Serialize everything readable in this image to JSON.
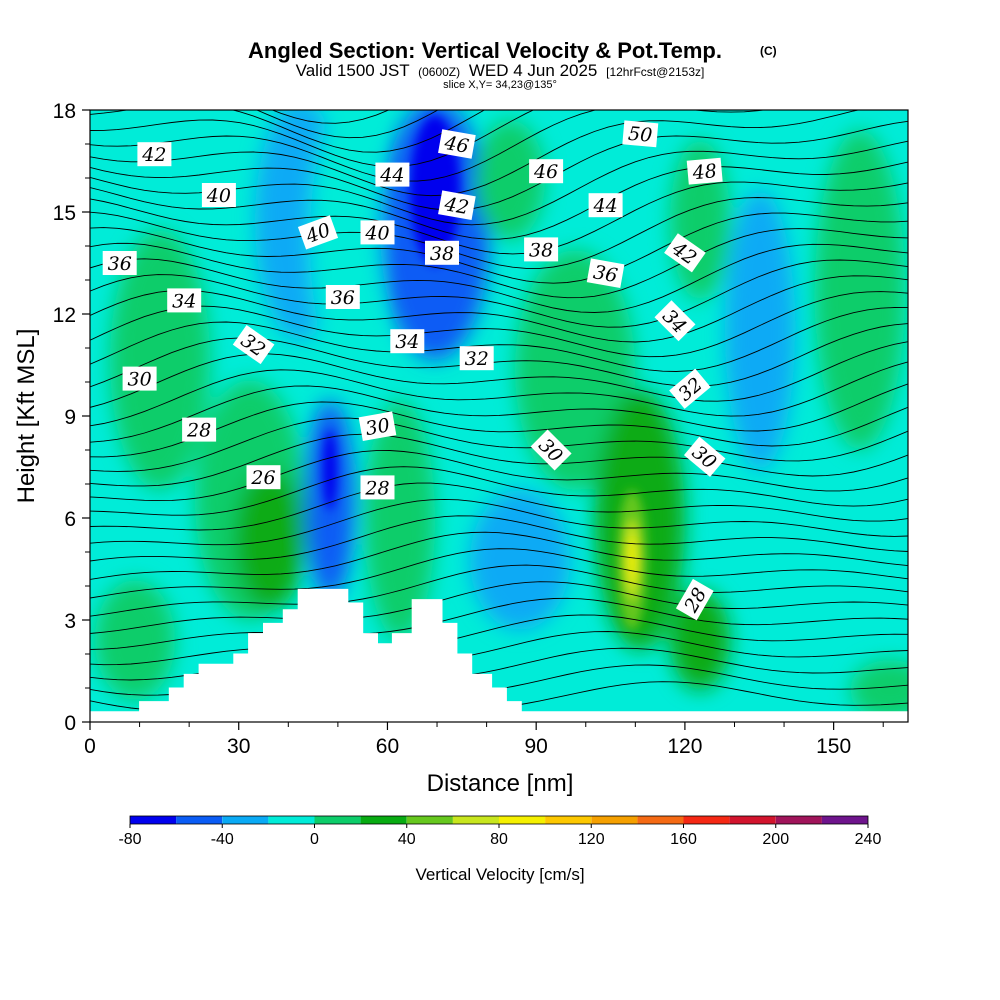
{
  "title": "Angled Section: Vertical Velocity & Pot.Temp.",
  "copyright": "(C)",
  "subtitle": {
    "valid_prefix": "Valid 1500 JST",
    "utc": "(0600Z)",
    "date": "WED 4 Jun 2025",
    "forecast": "[12hrFcst@2153z]"
  },
  "slice_label": "slice X,Y= 34,23@135°",
  "colorbar": {
    "label": "Vertical Velocity [cm/s]",
    "levels": [
      -80,
      -60,
      -40,
      -20,
      0,
      20,
      40,
      60,
      80,
      100,
      120,
      140,
      160,
      180,
      200,
      220,
      240
    ],
    "tick_labels": [
      "-80",
      "-40",
      "0",
      "40",
      "80",
      "120",
      "160",
      "200",
      "240"
    ],
    "colors": [
      "#0000ee",
      "#0a5cf5",
      "#0aaaf5",
      "#00ecd8",
      "#0dcd6a",
      "#08ab12",
      "#66c81e",
      "#c8e61e",
      "#f5f000",
      "#fdc800",
      "#f5a000",
      "#f56a14",
      "#f52814",
      "#d2142d",
      "#a0145a",
      "#6e148c"
    ]
  },
  "chart_data": {
    "type": "contour",
    "xlabel": "Distance [nm]",
    "ylabel": "Height [Kft MSL]",
    "xlim": [
      0,
      165
    ],
    "ylim": [
      0,
      18
    ],
    "xticks": [
      0,
      30,
      60,
      90,
      120,
      150
    ],
    "yticks": [
      0,
      3,
      6,
      9,
      12,
      15,
      18
    ],
    "terrain": [
      [
        0,
        0.3
      ],
      [
        10,
        0.3
      ],
      [
        10,
        0.6
      ],
      [
        16,
        0.6
      ],
      [
        16,
        1.0
      ],
      [
        19,
        1.0
      ],
      [
        19,
        1.4
      ],
      [
        22,
        1.4
      ],
      [
        22,
        1.7
      ],
      [
        29,
        1.7
      ],
      [
        29,
        2.0
      ],
      [
        32,
        2.0
      ],
      [
        32,
        2.6
      ],
      [
        35,
        2.6
      ],
      [
        35,
        2.9
      ],
      [
        39,
        2.9
      ],
      [
        39,
        3.3
      ],
      [
        42,
        3.3
      ],
      [
        42,
        3.9
      ],
      [
        52,
        3.9
      ],
      [
        52,
        3.5
      ],
      [
        55,
        3.5
      ],
      [
        55,
        2.6
      ],
      [
        58,
        2.6
      ],
      [
        58,
        2.3
      ],
      [
        61,
        2.3
      ],
      [
        61,
        2.6
      ],
      [
        65,
        2.6
      ],
      [
        65,
        3.6
      ],
      [
        71,
        3.6
      ],
      [
        71,
        2.9
      ],
      [
        74,
        2.9
      ],
      [
        74,
        2.0
      ],
      [
        77,
        2.0
      ],
      [
        77,
        1.4
      ],
      [
        81,
        1.4
      ],
      [
        81,
        1.0
      ],
      [
        84,
        1.0
      ],
      [
        84,
        0.6
      ],
      [
        87,
        0.6
      ],
      [
        87,
        0.3
      ],
      [
        165,
        0.3
      ]
    ],
    "contour_labels": [
      {
        "value": "42",
        "x": 13,
        "y": 16.7,
        "rot": 0
      },
      {
        "value": "40",
        "x": 26,
        "y": 15.5,
        "rot": 0
      },
      {
        "value": "36",
        "x": 6,
        "y": 13.5,
        "rot": 0
      },
      {
        "value": "34",
        "x": 19,
        "y": 12.4,
        "rot": 0
      },
      {
        "value": "32",
        "x": 33,
        "y": 11.1,
        "rot": 35
      },
      {
        "value": "30",
        "x": 10,
        "y": 10.1,
        "rot": 0
      },
      {
        "value": "28",
        "x": 22,
        "y": 8.6,
        "rot": 0
      },
      {
        "value": "26",
        "x": 35,
        "y": 7.2,
        "rot": 0
      },
      {
        "value": "44",
        "x": 61,
        "y": 16.1,
        "rot": 0
      },
      {
        "value": "40",
        "x": 46,
        "y": 14.4,
        "rot": -20
      },
      {
        "value": "40",
        "x": 58,
        "y": 14.4,
        "rot": 0
      },
      {
        "value": "36",
        "x": 51,
        "y": 12.5,
        "rot": 0
      },
      {
        "value": "34",
        "x": 64,
        "y": 11.2,
        "rot": 0
      },
      {
        "value": "30",
        "x": 58,
        "y": 8.7,
        "rot": -10
      },
      {
        "value": "28",
        "x": 58,
        "y": 6.9,
        "rot": 0
      },
      {
        "value": "46",
        "x": 74,
        "y": 17.0,
        "rot": 10
      },
      {
        "value": "42",
        "x": 74,
        "y": 15.2,
        "rot": 10
      },
      {
        "value": "38",
        "x": 71,
        "y": 13.8,
        "rot": 0
      },
      {
        "value": "32",
        "x": 78,
        "y": 10.7,
        "rot": 0
      },
      {
        "value": "46",
        "x": 92,
        "y": 16.2,
        "rot": 0
      },
      {
        "value": "38",
        "x": 91,
        "y": 13.9,
        "rot": 0
      },
      {
        "value": "30",
        "x": 93,
        "y": 8.0,
        "rot": 45
      },
      {
        "value": "50",
        "x": 111,
        "y": 17.3,
        "rot": 5
      },
      {
        "value": "44",
        "x": 104,
        "y": 15.2,
        "rot": 0
      },
      {
        "value": "36",
        "x": 104,
        "y": 13.2,
        "rot": 10
      },
      {
        "value": "48",
        "x": 124,
        "y": 16.2,
        "rot": -5
      },
      {
        "value": "42",
        "x": 120,
        "y": 13.8,
        "rot": 35
      },
      {
        "value": "34",
        "x": 118,
        "y": 11.8,
        "rot": 45
      },
      {
        "value": "32",
        "x": 121,
        "y": 9.8,
        "rot": -40
      },
      {
        "value": "30",
        "x": 124,
        "y": 7.8,
        "rot": 40
      },
      {
        "value": "28",
        "x": 122,
        "y": 3.6,
        "rot": -60
      }
    ]
  }
}
